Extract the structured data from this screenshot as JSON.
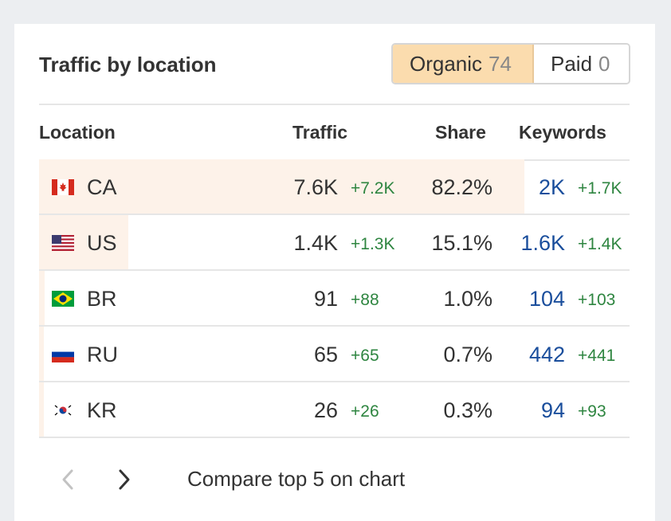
{
  "widget": {
    "title": "Traffic by location",
    "toggle": [
      {
        "label": "Organic",
        "count": "74",
        "active": true
      },
      {
        "label": "Paid",
        "count": "0",
        "active": false
      }
    ],
    "columns": {
      "location": "Location",
      "traffic": "Traffic",
      "share": "Share",
      "keywords": "Keywords"
    },
    "rows": [
      {
        "flag": "canada-flag",
        "code": "CA",
        "traffic": "7.6K",
        "traffic_delta": "+7.2K",
        "share": "82.2%",
        "share_value": 82.2,
        "keywords": "2K",
        "keywords_delta": "+1.7K"
      },
      {
        "flag": "us-flag",
        "code": "US",
        "traffic": "1.4K",
        "traffic_delta": "+1.3K",
        "share": "15.1%",
        "share_value": 15.1,
        "keywords": "1.6K",
        "keywords_delta": "+1.4K"
      },
      {
        "flag": "brazil-flag",
        "code": "BR",
        "traffic": "91",
        "traffic_delta": "+88",
        "share": "1.0%",
        "share_value": 1.0,
        "keywords": "104",
        "keywords_delta": "+103"
      },
      {
        "flag": "russia-flag",
        "code": "RU",
        "traffic": "65",
        "traffic_delta": "+65",
        "share": "0.7%",
        "share_value": 0.7,
        "keywords": "442",
        "keywords_delta": "+441"
      },
      {
        "flag": "korea-flag",
        "code": "KR",
        "traffic": "26",
        "traffic_delta": "+26",
        "share": "0.3%",
        "share_value": 0.3,
        "keywords": "94",
        "keywords_delta": "+93"
      }
    ],
    "compare_label": "Compare top 5 on chart",
    "colors": {
      "accent": "#fbdcae",
      "share_bar": "#fdf2e9",
      "positive": "#2e8540",
      "link": "#1a4e9c"
    }
  }
}
